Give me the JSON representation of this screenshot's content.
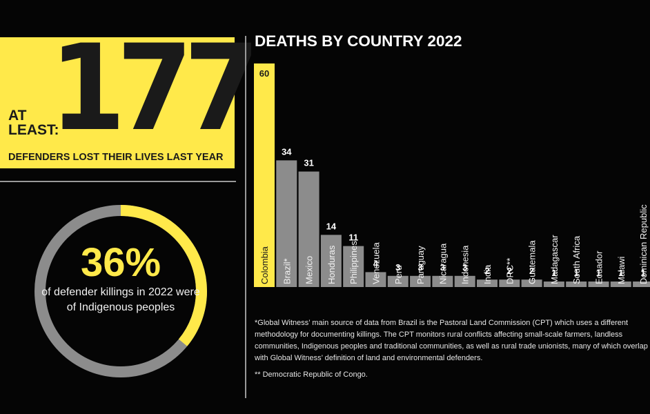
{
  "headline": {
    "number": "177",
    "prefix": "AT LEAST:",
    "subtitle": "DEFENDERS LOST THEIR LIVES LAST YEAR"
  },
  "indigenous": {
    "percent_label": "36%",
    "percent_value": 36,
    "caption": "of defender killings in 2022 were of Indigenous peoples"
  },
  "chart_data": {
    "type": "bar",
    "title": "DEATHS BY COUNTRY 2022",
    "categories": [
      "Colombia",
      "Brazil*",
      "Mexico",
      "Honduras",
      "Philippines",
      "Venezuela",
      "Peru",
      "Paraguay",
      "Nicaragua",
      "Indonesia",
      "India",
      "DRC**",
      "Guatemala",
      "Madagascar",
      "South Africa",
      "Ecuador",
      "Malawi",
      "Dominican Republic"
    ],
    "values": [
      60,
      34,
      31,
      14,
      11,
      4,
      3,
      3,
      3,
      3,
      2,
      2,
      2,
      1,
      1,
      1,
      1,
      1
    ],
    "highlight_index": 0,
    "xlabel": "",
    "ylabel": ""
  },
  "colors": {
    "accent": "#ffe94a",
    "bar": "#8c8c8c",
    "background": "#050505",
    "donut_track": "#8c8c8c"
  },
  "footnotes": {
    "brazil": "*Global Witness’ main source of data from Brazil is the Pastoral Land Commission (CPT) which uses a different methodology for documenting killings. The CPT monitors rural conflicts affecting small-scale farmers, landless communities, Indigenous peoples and traditional communities, as well as rural trade unionists, many of which overlap with Global Witness’ definition of land and environmental defenders.",
    "drc": "** Democratic Republic of Congo."
  }
}
